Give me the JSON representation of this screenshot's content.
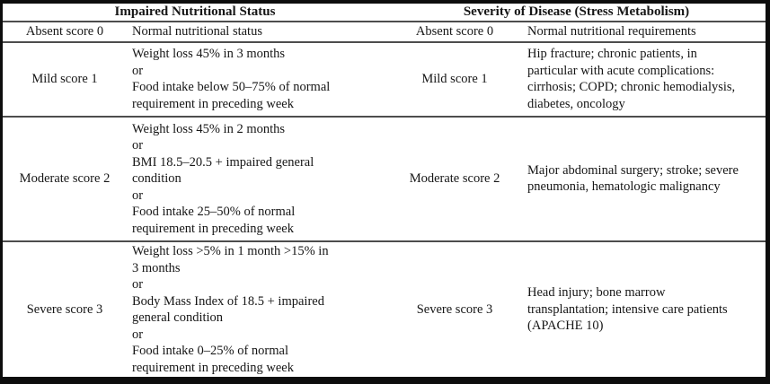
{
  "table": {
    "column_groups": [
      "Impaired Nutritional Status",
      "Severity of Disease (Stress Metabolism)"
    ],
    "rows": [
      {
        "nutrition_score": "Absent score 0",
        "nutrition_desc": "Normal nutritional status",
        "disease_score": "Absent score 0",
        "disease_desc": "Normal nutritional requirements"
      },
      {
        "nutrition_score": "Mild score 1",
        "nutrition_desc": "Weight loss 45% in 3 months\nor\nFood intake below 50–75% of normal\nrequirement in preceding week",
        "disease_score": "Mild score 1",
        "disease_desc": "Hip fracture; chronic patients, in\nparticular with acute complications:\ncirrhosis; COPD; chronic hemodialysis,\ndiabetes, oncology"
      },
      {
        "nutrition_score": "Moderate score 2",
        "nutrition_desc": "Weight loss 45% in 2 months\nor\nBMI 18.5–20.5 + impaired general\ncondition\nor\nFood intake 25–50% of normal\nrequirement in preceding week",
        "disease_score": "Moderate score 2",
        "disease_desc": "Major abdominal surgery; stroke; severe\npneumonia, hematologic malignancy"
      },
      {
        "nutrition_score": "Severe score 3",
        "nutrition_desc": "Weight loss >5% in 1 month >15% in\n3 months\nor\nBody Mass Index of 18.5 + impaired\ngeneral condition\nor\nFood intake 0–25% of normal\nrequirement in preceding week",
        "disease_score": "Severe score 3",
        "disease_desc": "Head injury; bone marrow\ntransplantation; intensive care patients\n(APACHE 10)"
      }
    ]
  },
  "colors": {
    "outer_border": "#0d0d0d",
    "rule": "#4d4d4d",
    "text": "#161616",
    "background": "#ffffff"
  }
}
